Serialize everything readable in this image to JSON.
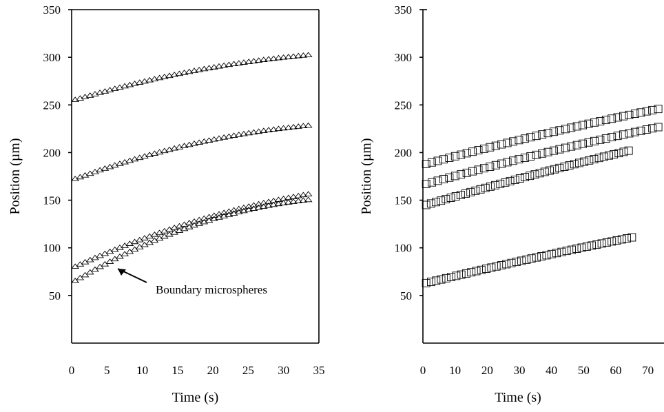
{
  "chart_data": [
    {
      "type": "scatter",
      "marker": "triangle",
      "xlabel": "Time (s)",
      "ylabel": "Position (µm)",
      "xlim": [
        0,
        35
      ],
      "ylim": [
        0,
        350
      ],
      "xticks": [
        0,
        5,
        10,
        15,
        20,
        25,
        30,
        35
      ],
      "yticks": [
        50,
        100,
        150,
        200,
        250,
        300,
        350
      ],
      "annotation": "Boundary microspheres",
      "series": [
        {
          "x": [
            0.5,
            33.5
          ],
          "y_start": 255,
          "y_end": 302,
          "curve": 0.55
        },
        {
          "x": [
            0.5,
            33.5
          ],
          "y_start": 172,
          "y_end": 228,
          "curve": 0.6,
          "peak_y": 231,
          "peak_x": 28
        },
        {
          "x": [
            0.5,
            33.5
          ],
          "y_start": 80,
          "y_end": 156,
          "curve": 0.45
        },
        {
          "x": [
            0.5,
            33.5
          ],
          "y_start": 65,
          "y_end": 150,
          "curve": 0.7
        }
      ]
    },
    {
      "type": "scatter",
      "marker": "square",
      "xlabel": "Time (s)",
      "ylabel": "Position (µm)",
      "xlim": [
        0,
        75
      ],
      "ylim": [
        0,
        350
      ],
      "xticks": [
        0,
        10,
        20,
        30,
        40,
        50,
        60,
        70
      ],
      "yticks": [
        50,
        100,
        150,
        200,
        250,
        300,
        350
      ],
      "series": [
        {
          "x": [
            1,
            75
          ],
          "y_start": 188,
          "y_end": 247,
          "curve": 0.15
        },
        {
          "x": [
            1,
            75
          ],
          "y_start": 167,
          "y_end": 228,
          "curve": 0.15
        },
        {
          "x": [
            1,
            64
          ],
          "y_start": 145,
          "y_end": 202,
          "curve": 0.1
        },
        {
          "x": [
            1,
            65
          ],
          "y_start": 63,
          "y_end": 111,
          "curve": 0.1
        }
      ]
    }
  ]
}
